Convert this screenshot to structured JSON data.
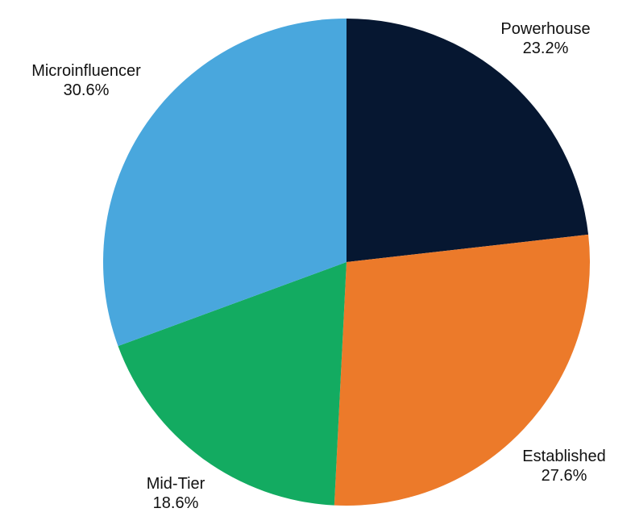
{
  "chart_data": {
    "type": "pie",
    "title": "",
    "start_angle_deg": 0,
    "direction": "clockwise",
    "slices": [
      {
        "label": "Powerhouse",
        "value": 23.2,
        "display": "23.2%",
        "color": "#061731"
      },
      {
        "label": "Established",
        "value": 27.6,
        "display": "27.6%",
        "color": "#EC7A2A"
      },
      {
        "label": "Mid-Tier",
        "value": 18.6,
        "display": "18.6%",
        "color": "#13AB61"
      },
      {
        "label": "Microinfluencer",
        "value": 30.6,
        "display": "30.6%",
        "color": "#49A7DD"
      }
    ]
  }
}
